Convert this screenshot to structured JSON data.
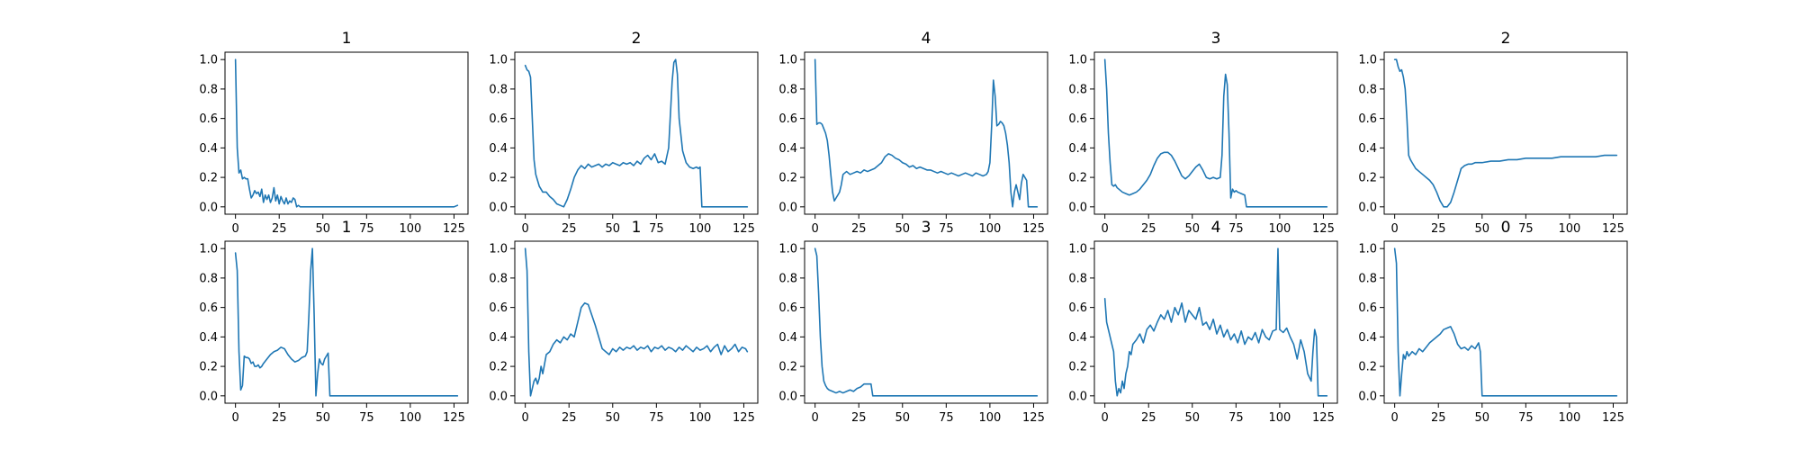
{
  "colors": {
    "line": "#1f77b4",
    "axes": "#000000",
    "background": "#ffffff"
  },
  "chart_data": [
    {
      "type": "line",
      "title": "1",
      "xlim": [
        -6,
        133
      ],
      "ylim": [
        -0.05,
        1.05
      ],
      "xticks": [
        0,
        25,
        50,
        75,
        100,
        125
      ],
      "yticks": [
        0.0,
        0.2,
        0.4,
        0.6,
        0.8,
        1.0
      ],
      "x": [
        0,
        1,
        2,
        3,
        4,
        5,
        6,
        7,
        8,
        9,
        10,
        11,
        12,
        13,
        14,
        15,
        16,
        17,
        18,
        19,
        20,
        21,
        22,
        23,
        24,
        25,
        26,
        27,
        28,
        29,
        30,
        31,
        32,
        33,
        34,
        35,
        36,
        37,
        40,
        50,
        60,
        75,
        100,
        110,
        120,
        125,
        127
      ],
      "y": [
        1.0,
        0.4,
        0.23,
        0.25,
        0.19,
        0.2,
        0.19,
        0.19,
        0.12,
        0.06,
        0.08,
        0.11,
        0.09,
        0.1,
        0.07,
        0.12,
        0.03,
        0.08,
        0.05,
        0.08,
        0.03,
        0.06,
        0.13,
        0.04,
        0.08,
        0.02,
        0.07,
        0.04,
        0.02,
        0.06,
        0.02,
        0.04,
        0.03,
        0.06,
        0.05,
        0.0,
        0.01,
        0.0,
        0.0,
        0.0,
        0.0,
        0.0,
        0.0,
        0.0,
        0.0,
        0.0,
        0.01
      ]
    },
    {
      "type": "line",
      "title": "2",
      "xlim": [
        -6,
        133
      ],
      "ylim": [
        -0.05,
        1.05
      ],
      "xticks": [
        0,
        25,
        50,
        75,
        100,
        125
      ],
      "yticks": [
        0.0,
        0.2,
        0.4,
        0.6,
        0.8,
        1.0
      ],
      "x": [
        0,
        1,
        2,
        3,
        4,
        5,
        6,
        7,
        8,
        10,
        12,
        14,
        16,
        18,
        20,
        22,
        24,
        26,
        28,
        30,
        32,
        34,
        36,
        38,
        40,
        42,
        44,
        46,
        48,
        50,
        52,
        54,
        56,
        58,
        60,
        62,
        64,
        66,
        68,
        70,
        72,
        74,
        76,
        78,
        80,
        82,
        84,
        85,
        86,
        87,
        88,
        90,
        92,
        94,
        96,
        98,
        99,
        100,
        101,
        110,
        120,
        125,
        127
      ],
      "y": [
        0.96,
        0.93,
        0.92,
        0.88,
        0.6,
        0.32,
        0.22,
        0.18,
        0.14,
        0.1,
        0.1,
        0.07,
        0.05,
        0.02,
        0.01,
        0.0,
        0.05,
        0.12,
        0.2,
        0.25,
        0.28,
        0.26,
        0.29,
        0.27,
        0.28,
        0.29,
        0.27,
        0.29,
        0.28,
        0.3,
        0.29,
        0.28,
        0.3,
        0.29,
        0.3,
        0.28,
        0.31,
        0.29,
        0.33,
        0.35,
        0.32,
        0.36,
        0.3,
        0.31,
        0.29,
        0.4,
        0.85,
        0.98,
        1.0,
        0.9,
        0.6,
        0.38,
        0.3,
        0.27,
        0.26,
        0.27,
        0.26,
        0.27,
        0.0,
        0.0,
        0.0,
        0.0,
        0.0
      ]
    },
    {
      "type": "line",
      "title": "4",
      "xlim": [
        -6,
        133
      ],
      "ylim": [
        -0.05,
        1.05
      ],
      "xticks": [
        0,
        25,
        50,
        75,
        100,
        125
      ],
      "yticks": [
        0.0,
        0.2,
        0.4,
        0.6,
        0.8,
        1.0
      ],
      "x": [
        0,
        1,
        2,
        3,
        4,
        5,
        6,
        7,
        8,
        9,
        10,
        11,
        12,
        13,
        14,
        15,
        16,
        18,
        20,
        22,
        24,
        26,
        28,
        30,
        32,
        34,
        36,
        38,
        40,
        42,
        44,
        46,
        48,
        50,
        52,
        54,
        56,
        58,
        60,
        62,
        64,
        66,
        68,
        70,
        72,
        74,
        76,
        78,
        80,
        82,
        84,
        86,
        88,
        90,
        92,
        94,
        96,
        98,
        99,
        100,
        101,
        102,
        103,
        104,
        105,
        106,
        107,
        108,
        109,
        110,
        111,
        112,
        113,
        114,
        115,
        116,
        117,
        118,
        119,
        120,
        121,
        122,
        125,
        127
      ],
      "y": [
        1.0,
        0.56,
        0.57,
        0.57,
        0.56,
        0.53,
        0.5,
        0.45,
        0.35,
        0.22,
        0.1,
        0.04,
        0.06,
        0.08,
        0.1,
        0.15,
        0.22,
        0.24,
        0.22,
        0.23,
        0.24,
        0.23,
        0.25,
        0.24,
        0.25,
        0.26,
        0.28,
        0.3,
        0.34,
        0.36,
        0.35,
        0.33,
        0.32,
        0.3,
        0.29,
        0.27,
        0.28,
        0.26,
        0.27,
        0.26,
        0.25,
        0.25,
        0.24,
        0.23,
        0.24,
        0.23,
        0.22,
        0.23,
        0.22,
        0.21,
        0.22,
        0.23,
        0.22,
        0.21,
        0.23,
        0.22,
        0.21,
        0.22,
        0.24,
        0.3,
        0.55,
        0.86,
        0.75,
        0.55,
        0.56,
        0.58,
        0.57,
        0.55,
        0.5,
        0.42,
        0.3,
        0.1,
        0.0,
        0.1,
        0.15,
        0.1,
        0.05,
        0.16,
        0.22,
        0.2,
        0.18,
        0.0,
        0.0,
        0.0
      ]
    },
    {
      "type": "line",
      "title": "3",
      "xlim": [
        -6,
        133
      ],
      "ylim": [
        -0.05,
        1.05
      ],
      "xticks": [
        0,
        25,
        50,
        75,
        100,
        125
      ],
      "yticks": [
        0.0,
        0.2,
        0.4,
        0.6,
        0.8,
        1.0
      ],
      "x": [
        0,
        1,
        2,
        3,
        4,
        5,
        6,
        7,
        8,
        10,
        12,
        14,
        16,
        18,
        20,
        22,
        24,
        26,
        28,
        30,
        32,
        34,
        36,
        38,
        40,
        42,
        44,
        46,
        48,
        50,
        52,
        54,
        56,
        58,
        60,
        62,
        64,
        66,
        67,
        68,
        69,
        70,
        71,
        72,
        73,
        74,
        75,
        76,
        78,
        80,
        81,
        90,
        100,
        110,
        120,
        125,
        127
      ],
      "y": [
        1.0,
        0.8,
        0.5,
        0.3,
        0.15,
        0.14,
        0.15,
        0.13,
        0.12,
        0.1,
        0.09,
        0.08,
        0.09,
        0.1,
        0.12,
        0.15,
        0.18,
        0.22,
        0.28,
        0.33,
        0.36,
        0.37,
        0.37,
        0.35,
        0.31,
        0.26,
        0.21,
        0.19,
        0.21,
        0.24,
        0.27,
        0.29,
        0.25,
        0.2,
        0.19,
        0.2,
        0.19,
        0.2,
        0.35,
        0.75,
        0.9,
        0.83,
        0.5,
        0.06,
        0.12,
        0.1,
        0.11,
        0.1,
        0.09,
        0.08,
        0.0,
        0.0,
        0.0,
        0.0,
        0.0,
        0.0,
        0.0
      ]
    },
    {
      "type": "line",
      "title": "2",
      "xlim": [
        -6,
        133
      ],
      "ylim": [
        -0.05,
        1.05
      ],
      "xticks": [
        0,
        25,
        50,
        75,
        100,
        125
      ],
      "yticks": [
        0.0,
        0.2,
        0.4,
        0.6,
        0.8,
        1.0
      ],
      "x": [
        0,
        1,
        2,
        3,
        4,
        5,
        6,
        7,
        8,
        9,
        10,
        11,
        12,
        14,
        16,
        18,
        20,
        22,
        24,
        26,
        28,
        30,
        32,
        34,
        36,
        38,
        40,
        42,
        44,
        46,
        48,
        50,
        55,
        60,
        65,
        70,
        75,
        80,
        85,
        90,
        95,
        100,
        105,
        110,
        115,
        120,
        125,
        127
      ],
      "y": [
        1.0,
        1.0,
        0.95,
        0.92,
        0.93,
        0.88,
        0.8,
        0.6,
        0.35,
        0.32,
        0.3,
        0.28,
        0.26,
        0.24,
        0.22,
        0.2,
        0.18,
        0.15,
        0.1,
        0.04,
        0.0,
        0.0,
        0.03,
        0.1,
        0.18,
        0.26,
        0.28,
        0.29,
        0.29,
        0.3,
        0.3,
        0.3,
        0.31,
        0.31,
        0.32,
        0.32,
        0.33,
        0.33,
        0.33,
        0.33,
        0.34,
        0.34,
        0.34,
        0.34,
        0.34,
        0.35,
        0.35,
        0.35
      ]
    },
    {
      "type": "line",
      "title": "1",
      "xlim": [
        -6,
        133
      ],
      "ylim": [
        -0.05,
        1.05
      ],
      "xticks": [
        0,
        25,
        50,
        75,
        100,
        125
      ],
      "yticks": [
        0.0,
        0.2,
        0.4,
        0.6,
        0.8,
        1.0
      ],
      "x": [
        0,
        1,
        2,
        3,
        4,
        5,
        6,
        7,
        8,
        9,
        10,
        11,
        12,
        13,
        14,
        15,
        16,
        18,
        20,
        22,
        24,
        26,
        28,
        30,
        32,
        34,
        36,
        38,
        40,
        41,
        42,
        43,
        44,
        45,
        46,
        47,
        48,
        49,
        50,
        51,
        52,
        53,
        54,
        60,
        75,
        100,
        125,
        127
      ],
      "y": [
        0.97,
        0.85,
        0.3,
        0.04,
        0.07,
        0.27,
        0.26,
        0.26,
        0.25,
        0.22,
        0.23,
        0.2,
        0.2,
        0.21,
        0.19,
        0.2,
        0.22,
        0.25,
        0.28,
        0.3,
        0.31,
        0.33,
        0.32,
        0.28,
        0.25,
        0.23,
        0.24,
        0.26,
        0.27,
        0.3,
        0.55,
        0.85,
        1.0,
        0.55,
        0.0,
        0.15,
        0.25,
        0.22,
        0.21,
        0.25,
        0.27,
        0.29,
        0.0,
        0.0,
        0.0,
        0.0,
        0.0,
        0.0
      ]
    },
    {
      "type": "line",
      "title": "1",
      "xlim": [
        -6,
        133
      ],
      "ylim": [
        -0.05,
        1.05
      ],
      "xticks": [
        0,
        25,
        50,
        75,
        100,
        125
      ],
      "yticks": [
        0.0,
        0.2,
        0.4,
        0.6,
        0.8,
        1.0
      ],
      "x": [
        0,
        1,
        2,
        3,
        4,
        5,
        6,
        7,
        8,
        9,
        10,
        12,
        14,
        16,
        18,
        20,
        22,
        24,
        26,
        28,
        30,
        32,
        34,
        36,
        38,
        40,
        42,
        44,
        46,
        48,
        50,
        52,
        54,
        56,
        58,
        60,
        62,
        64,
        66,
        68,
        70,
        72,
        74,
        76,
        78,
        80,
        82,
        84,
        86,
        88,
        90,
        92,
        94,
        96,
        98,
        100,
        102,
        104,
        106,
        108,
        110,
        112,
        114,
        116,
        118,
        120,
        122,
        124,
        126,
        127
      ],
      "y": [
        1.0,
        0.85,
        0.3,
        0.0,
        0.05,
        0.1,
        0.12,
        0.08,
        0.12,
        0.2,
        0.15,
        0.28,
        0.3,
        0.35,
        0.38,
        0.36,
        0.4,
        0.38,
        0.42,
        0.4,
        0.5,
        0.6,
        0.63,
        0.62,
        0.55,
        0.48,
        0.4,
        0.32,
        0.3,
        0.28,
        0.32,
        0.3,
        0.33,
        0.31,
        0.33,
        0.32,
        0.34,
        0.31,
        0.33,
        0.32,
        0.34,
        0.3,
        0.33,
        0.32,
        0.34,
        0.31,
        0.33,
        0.32,
        0.3,
        0.33,
        0.31,
        0.34,
        0.32,
        0.3,
        0.33,
        0.31,
        0.32,
        0.34,
        0.3,
        0.33,
        0.35,
        0.28,
        0.34,
        0.3,
        0.32,
        0.35,
        0.3,
        0.33,
        0.32,
        0.3
      ]
    },
    {
      "type": "line",
      "title": "3",
      "xlim": [
        -6,
        133
      ],
      "ylim": [
        -0.05,
        1.05
      ],
      "xticks": [
        0,
        25,
        50,
        75,
        100,
        125
      ],
      "yticks": [
        0.0,
        0.2,
        0.4,
        0.6,
        0.8,
        1.0
      ],
      "x": [
        0,
        1,
        2,
        3,
        4,
        5,
        6,
        7,
        8,
        10,
        12,
        14,
        16,
        18,
        20,
        22,
        24,
        26,
        28,
        30,
        32,
        33,
        34,
        40,
        50,
        75,
        100,
        125,
        127
      ],
      "y": [
        1.0,
        0.95,
        0.7,
        0.4,
        0.2,
        0.1,
        0.07,
        0.05,
        0.04,
        0.03,
        0.02,
        0.03,
        0.02,
        0.03,
        0.04,
        0.03,
        0.05,
        0.06,
        0.08,
        0.08,
        0.08,
        0.0,
        0.0,
        0.0,
        0.0,
        0.0,
        0.0,
        0.0,
        0.0
      ]
    },
    {
      "type": "line",
      "title": "4",
      "xlim": [
        -6,
        133
      ],
      "ylim": [
        -0.05,
        1.05
      ],
      "xticks": [
        0,
        25,
        50,
        75,
        100,
        125
      ],
      "yticks": [
        0.0,
        0.2,
        0.4,
        0.6,
        0.8,
        1.0
      ],
      "x": [
        0,
        1,
        2,
        3,
        4,
        5,
        6,
        7,
        8,
        9,
        10,
        11,
        12,
        13,
        14,
        15,
        16,
        18,
        20,
        22,
        24,
        26,
        28,
        30,
        32,
        34,
        36,
        38,
        40,
        42,
        44,
        46,
        48,
        50,
        52,
        54,
        56,
        58,
        60,
        62,
        64,
        66,
        68,
        70,
        72,
        74,
        76,
        78,
        80,
        82,
        84,
        86,
        88,
        90,
        92,
        94,
        96,
        98,
        99,
        100,
        102,
        104,
        106,
        108,
        110,
        112,
        114,
        116,
        118,
        119,
        120,
        121,
        122,
        125,
        127
      ],
      "y": [
        0.66,
        0.5,
        0.45,
        0.4,
        0.35,
        0.3,
        0.1,
        0.0,
        0.05,
        0.02,
        0.1,
        0.05,
        0.15,
        0.2,
        0.3,
        0.28,
        0.35,
        0.38,
        0.42,
        0.36,
        0.45,
        0.48,
        0.44,
        0.5,
        0.55,
        0.52,
        0.58,
        0.5,
        0.6,
        0.55,
        0.63,
        0.5,
        0.58,
        0.55,
        0.52,
        0.6,
        0.48,
        0.5,
        0.45,
        0.52,
        0.42,
        0.48,
        0.4,
        0.45,
        0.38,
        0.42,
        0.36,
        0.44,
        0.35,
        0.4,
        0.38,
        0.43,
        0.36,
        0.45,
        0.4,
        0.38,
        0.44,
        0.45,
        1.0,
        0.45,
        0.43,
        0.46,
        0.4,
        0.35,
        0.25,
        0.38,
        0.3,
        0.15,
        0.1,
        0.3,
        0.45,
        0.4,
        0.0,
        0.0,
        0.0
      ]
    },
    {
      "type": "line",
      "title": "0",
      "xlim": [
        -6,
        133
      ],
      "ylim": [
        -0.05,
        1.05
      ],
      "xticks": [
        0,
        25,
        50,
        75,
        100,
        125
      ],
      "yticks": [
        0.0,
        0.2,
        0.4,
        0.6,
        0.8,
        1.0
      ],
      "x": [
        0,
        1,
        2,
        3,
        4,
        5,
        6,
        7,
        8,
        10,
        12,
        14,
        16,
        18,
        20,
        22,
        24,
        26,
        28,
        30,
        32,
        34,
        36,
        38,
        40,
        42,
        44,
        46,
        48,
        49,
        50,
        51,
        60,
        75,
        100,
        125,
        127
      ],
      "y": [
        1.0,
        0.9,
        0.3,
        0.0,
        0.15,
        0.28,
        0.25,
        0.3,
        0.27,
        0.3,
        0.28,
        0.32,
        0.3,
        0.33,
        0.36,
        0.38,
        0.4,
        0.42,
        0.45,
        0.46,
        0.47,
        0.42,
        0.35,
        0.32,
        0.33,
        0.31,
        0.34,
        0.32,
        0.36,
        0.3,
        0.0,
        0.0,
        0.0,
        0.0,
        0.0,
        0.0,
        0.0
      ]
    }
  ]
}
